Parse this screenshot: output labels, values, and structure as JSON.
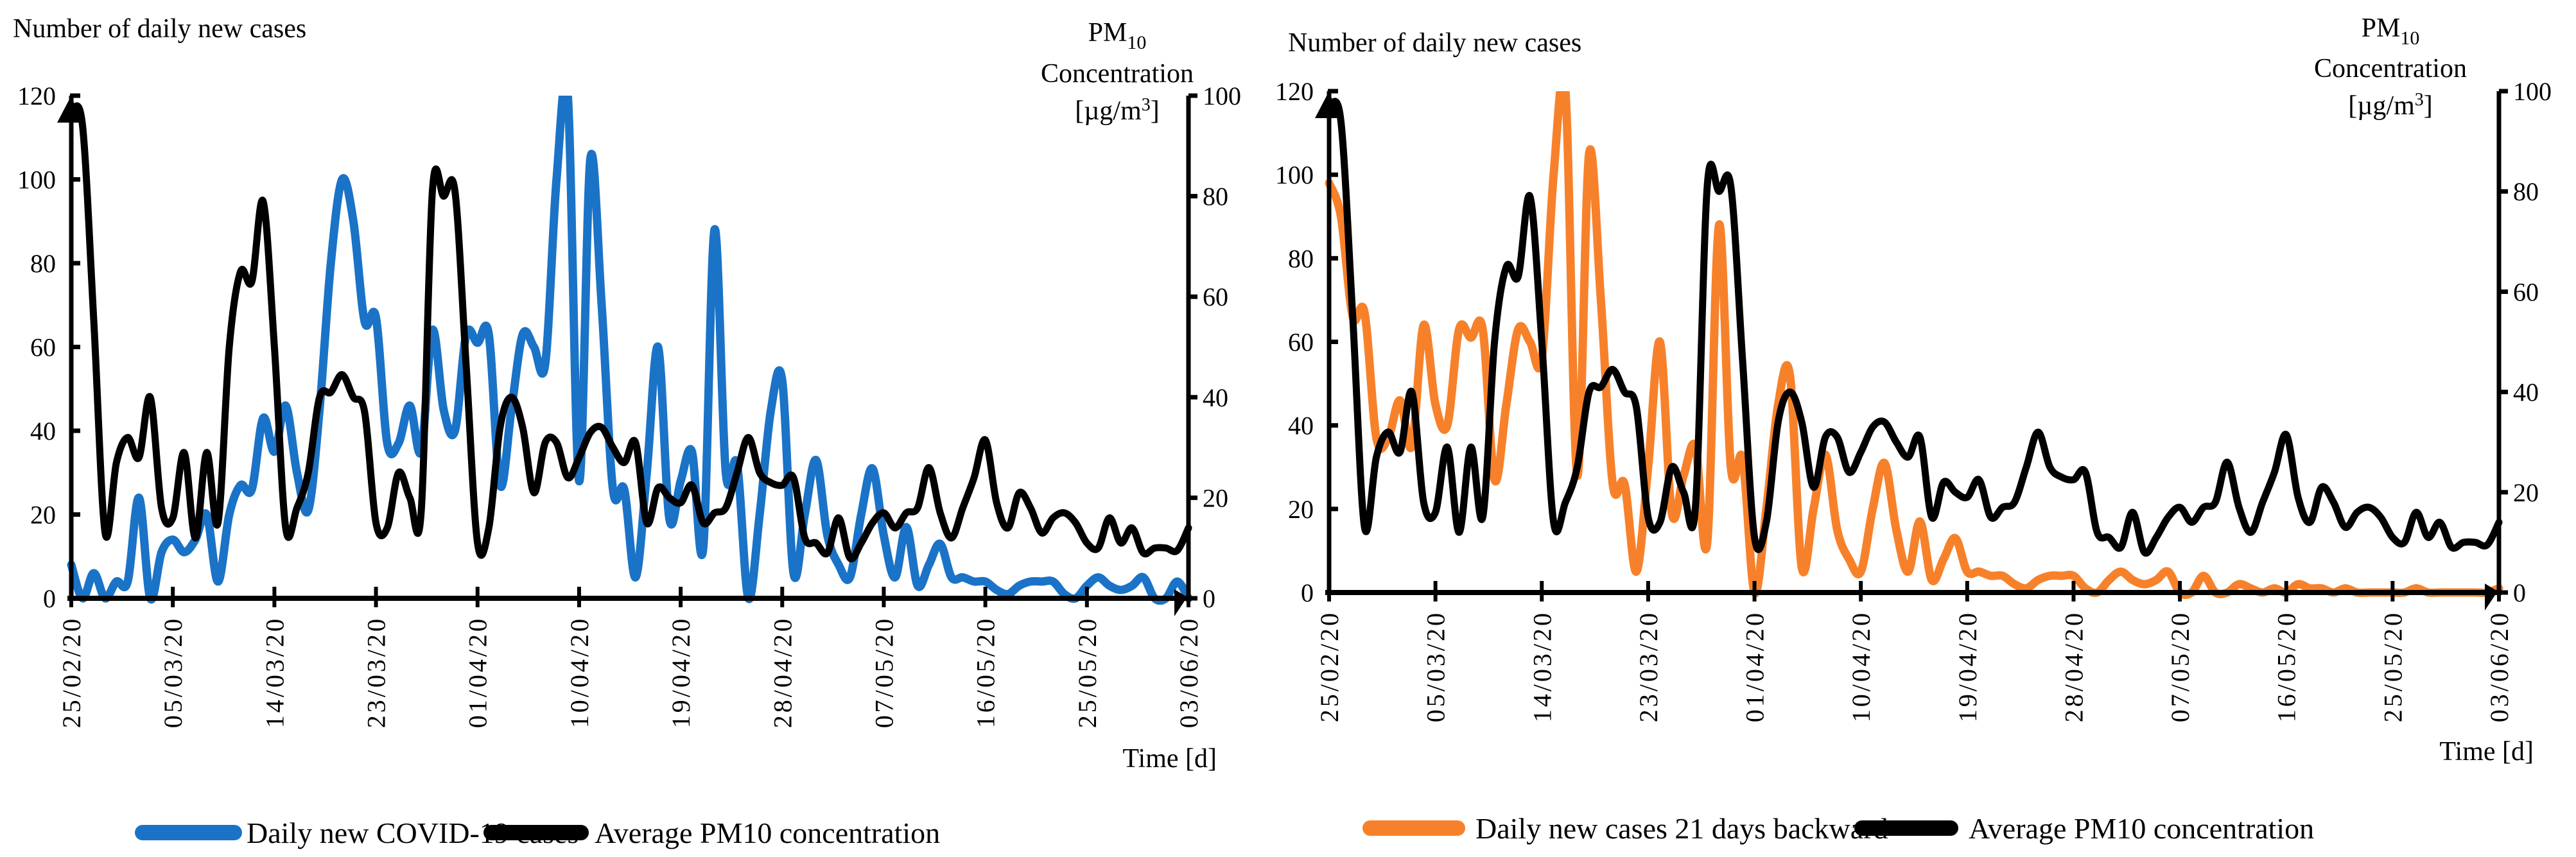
{
  "chart_data": [
    {
      "type": "line",
      "left_axis_title": "Number of daily new cases",
      "right_axis_title": {
        "line1_main": "PM",
        "line1_sub": "10",
        "line2": "Concentration",
        "line3_pre": "[µg/m",
        "line3_sup": "3",
        "line3_post": "]"
      },
      "xlabel": "Time [d]",
      "x_start": "25/02/20",
      "x_tick_labels": [
        "25/02/20",
        "05/03/20",
        "14/03/20",
        "23/03/20",
        "01/04/20",
        "10/04/20",
        "19/04/20",
        "28/04/20",
        "07/05/20",
        "16/05/20",
        "25/05/20",
        "03/06/20"
      ],
      "x_tick_step_days": 9,
      "ylim_left": [
        0,
        120
      ],
      "yticks_left": [
        "0",
        "20",
        "40",
        "60",
        "80",
        "100",
        "120"
      ],
      "ylim_right": [
        0,
        100
      ],
      "yticks_right": [
        "0",
        "20",
        "40",
        "60",
        "80",
        "100"
      ],
      "legend_placement": "bottom",
      "series": [
        {
          "name": "Daily new COVID-19 cases",
          "axis": "left",
          "color": "#1a73c7",
          "values": [
            8,
            0,
            6,
            0,
            4,
            4,
            24,
            0,
            11,
            14,
            11,
            14,
            20,
            4,
            20,
            27,
            26,
            43,
            35,
            46,
            30,
            21,
            45,
            80,
            100,
            90,
            66,
            67,
            37,
            37,
            46,
            35,
            64,
            45,
            40,
            63,
            61,
            63,
            27,
            45,
            63,
            60,
            56,
            100,
            120,
            28,
            105,
            70,
            26,
            26,
            5,
            30,
            60,
            19,
            28,
            35,
            12,
            88,
            30,
            32,
            0,
            20,
            45,
            52,
            6,
            20,
            33,
            15,
            8,
            5,
            20,
            31,
            15,
            5,
            17,
            3,
            8,
            13,
            5,
            5,
            4,
            4,
            2,
            1,
            3,
            4,
            4,
            4,
            1,
            0,
            3,
            5,
            3,
            2,
            3,
            5,
            0,
            0,
            4,
            0
          ]
        },
        {
          "name": "Average PM10 concentration",
          "axis": "right",
          "color": "#000000",
          "values": [
            97,
            94,
            55,
            13,
            27,
            32,
            28,
            40,
            18,
            16,
            29,
            12,
            29,
            15,
            50,
            65,
            63,
            79,
            50,
            14,
            18,
            25,
            40,
            41,
            44.5,
            40,
            37,
            15,
            14,
            25,
            20,
            17,
            81,
            80,
            81,
            46,
            11,
            14,
            34,
            40,
            34,
            21,
            31,
            31,
            24,
            28,
            33,
            34,
            30,
            27,
            31,
            15,
            22,
            20,
            19,
            22.5,
            15,
            17,
            18,
            25,
            32,
            25,
            23,
            22.5,
            24,
            12,
            11,
            9,
            16,
            8,
            11,
            15,
            17,
            14,
            17,
            18,
            26,
            17,
            12,
            18,
            24,
            31.5,
            19,
            14,
            21,
            18,
            13,
            16,
            17,
            15,
            11,
            10,
            16,
            11,
            14,
            9,
            10,
            10,
            9.5,
            14
          ]
        }
      ]
    },
    {
      "type": "line",
      "left_axis_title": "Number of daily new cases",
      "right_axis_title": {
        "line1_main": "PM",
        "line1_sub": "10",
        "line2": "Concentration",
        "line3_pre": "[µg/m",
        "line3_sup": "3",
        "line3_post": "]"
      },
      "xlabel": "Time [d]",
      "x_start": "25/02/20",
      "x_tick_labels": [
        "25/02/20",
        "05/03/20",
        "14/03/20",
        "23/03/20",
        "01/04/20",
        "10/04/20",
        "19/04/20",
        "28/04/20",
        "07/05/20",
        "16/05/20",
        "25/05/20",
        "03/06/20"
      ],
      "x_tick_step_days": 9,
      "ylim_left": [
        0,
        120
      ],
      "yticks_left": [
        "0",
        "20",
        "40",
        "60",
        "80",
        "100",
        "120"
      ],
      "ylim_right": [
        0,
        100
      ],
      "yticks_right": [
        "0",
        "20",
        "40",
        "60",
        "80",
        "100"
      ],
      "legend_placement": "bottom",
      "series": [
        {
          "name": "Daily new cases 21 days backward",
          "axis": "left",
          "color": "#f7812a",
          "values": [
            98,
            90,
            66,
            67,
            37,
            37,
            46,
            35,
            64,
            45,
            40,
            63,
            61,
            63,
            27,
            45,
            63,
            60,
            56,
            100,
            120,
            28,
            105,
            70,
            26,
            26,
            5,
            30,
            60,
            19,
            28,
            35,
            12,
            88,
            30,
            32,
            0,
            20,
            45,
            52,
            6,
            20,
            33,
            15,
            8,
            5,
            20,
            31,
            15,
            5,
            17,
            3,
            8,
            13,
            5,
            5,
            4,
            4,
            2,
            1,
            3,
            4,
            4,
            4,
            1,
            0,
            3,
            5,
            3,
            2,
            3,
            5,
            0,
            0,
            4,
            0,
            0,
            2,
            1,
            0,
            1,
            0,
            2,
            1,
            1,
            0,
            1,
            0,
            0,
            0,
            0,
            0,
            1,
            0,
            0,
            0,
            0,
            0,
            0,
            1
          ]
        },
        {
          "name": "Average PM10 concentration",
          "axis": "right",
          "color": "#000000",
          "values": [
            97,
            94,
            55,
            13,
            27,
            32,
            28,
            40,
            18,
            16,
            29,
            12,
            29,
            15,
            50,
            65,
            63,
            79,
            50,
            14,
            18,
            25,
            40,
            41,
            44.5,
            40,
            37,
            15,
            14,
            25,
            20,
            17,
            81,
            80,
            81,
            46,
            11,
            14,
            34,
            40,
            34,
            21,
            31,
            31,
            24,
            28,
            33,
            34,
            30,
            27,
            31,
            15,
            22,
            20,
            19,
            22.5,
            15,
            17,
            18,
            25,
            32,
            25,
            23,
            22.5,
            24,
            12,
            11,
            9,
            16,
            8,
            11,
            15,
            17,
            14,
            17,
            18,
            26,
            17,
            12,
            18,
            24,
            31.5,
            19,
            14,
            21,
            18,
            13,
            16,
            17,
            15,
            11,
            10,
            16,
            11,
            14,
            9,
            10,
            10,
            9.5,
            14
          ]
        }
      ]
    }
  ]
}
